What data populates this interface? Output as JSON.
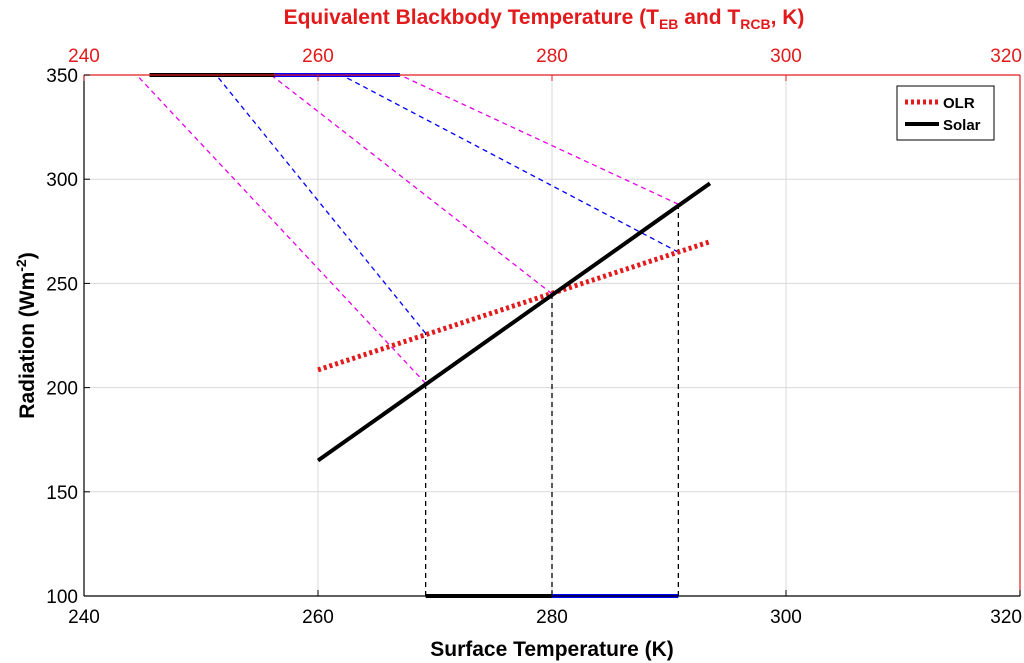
{
  "chart_data": {
    "type": "line",
    "xlabel": "Surface Temperature (K)",
    "ylabel": {
      "main": "Radiation (Wm",
      "sup": "-2",
      "end": ")"
    },
    "top_xlabel": {
      "parts": [
        {
          "t": "Equivalent Blackbody Temperature (T",
          "sub": false
        },
        {
          "t": "EB",
          "sub": true
        },
        {
          "t": " and T",
          "sub": false
        },
        {
          "t": "RCB",
          "sub": true
        },
        {
          "t": ", K)",
          "sub": false
        }
      ]
    },
    "xlim": [
      240,
      320
    ],
    "ylim": [
      100,
      350
    ],
    "xticks": [
      "240",
      "260",
      "280",
      "300",
      "320"
    ],
    "yticks": [
      "100",
      "150",
      "200",
      "250",
      "300",
      "350"
    ],
    "top_xticks": [
      "240",
      "260",
      "280",
      "300",
      "320"
    ],
    "grid": true,
    "legend": {
      "position": "top-right"
    },
    "colors": {
      "olr": "#e31a1c",
      "solar": "#000000",
      "blue": "#0000ff",
      "magenta": "#e600e6",
      "top_axis": "#e31a1c"
    },
    "series": [
      {
        "name": "OLR",
        "style": "dotted",
        "color": "#e31a1c",
        "x": [
          260,
          293.5
        ],
        "y": [
          208.5,
          270
        ]
      },
      {
        "name": "Solar",
        "style": "solid",
        "color": "#000000",
        "x": [
          260,
          293.5
        ],
        "y": [
          165,
          298
        ]
      }
    ],
    "guides": {
      "vertical_dashed": [
        {
          "x": 269.2,
          "y_top": 226
        },
        {
          "x": 280,
          "y_top": 245
        },
        {
          "x": 290.8,
          "y_top": 288
        }
      ],
      "blue_dashed": [
        {
          "from": [
            269.2,
            226
          ],
          "to": [
            251.3,
            350
          ]
        },
        {
          "from": [
            290.8,
            265
          ],
          "to": [
            262,
            350
          ]
        }
      ],
      "magenta_dashed": [
        {
          "from": [
            269.2,
            202
          ],
          "to": [
            244.5,
            350
          ]
        },
        {
          "from": [
            280,
            245
          ],
          "to": [
            256,
            350
          ]
        },
        {
          "from": [
            290.8,
            288
          ],
          "to": [
            267,
            350
          ]
        }
      ]
    },
    "range_bars": {
      "bottom": [
        {
          "from": 269.2,
          "to": 280,
          "color": "#000000"
        },
        {
          "from": 280,
          "to": 290.8,
          "color": "#0000ff"
        }
      ],
      "top": [
        {
          "from": 245.6,
          "to": 256.3,
          "color": "#000000"
        },
        {
          "from": 256.3,
          "to": 267,
          "color": "#0000ff"
        }
      ]
    }
  }
}
